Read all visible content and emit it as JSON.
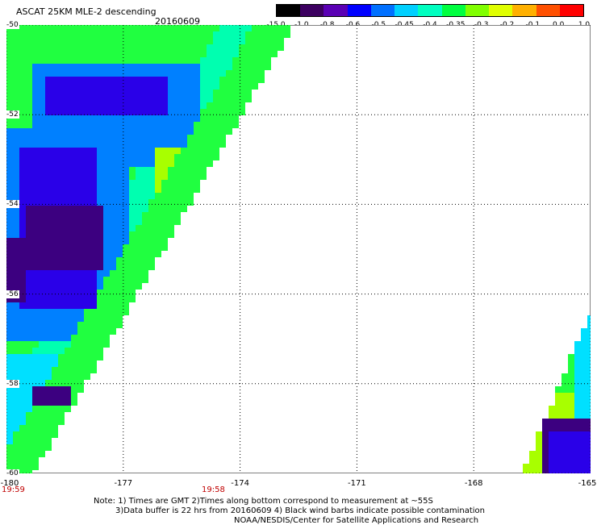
{
  "header": {
    "title": "ASCAT 25KM MLE-2 descending",
    "date": "20160609"
  },
  "colorbar": {
    "labels": [
      "-15.0",
      "-1.0",
      "-0.8",
      "-0.6",
      "-0.5",
      "-0.45",
      "-0.4",
      "-0.35",
      "-0.3",
      "-0.2",
      "-0.1",
      "0.0",
      "1.0"
    ],
    "colors": [
      "#000000",
      "#3c0060",
      "#5a00b4",
      "#0000ff",
      "#0070ff",
      "#00d0ff",
      "#00ffc0",
      "#00ff40",
      "#80ff00",
      "#e0ff00",
      "#ffb000",
      "#ff5000",
      "#ff0000"
    ]
  },
  "map": {
    "x_labels": [
      "-180",
      "-177",
      "-174",
      "-171",
      "-168",
      "-165"
    ],
    "y_labels": [
      "-50",
      "-52",
      "-54",
      "-56",
      "-58",
      "-60"
    ],
    "times": [
      "19:59",
      "19:58"
    ],
    "field_colors": {
      "deep": "#3c0080",
      "blue": "#2a00e8",
      "lightblue": "#0080ff",
      "cyan": "#00e0ff",
      "aqua": "#00ffb0",
      "green": "#20ff40",
      "lime": "#a8ff00"
    }
  },
  "notes": {
    "line1": "Note: 1) Times are GMT 2)Times along bottom correspond to measurement at ~55S",
    "line2": "3)Data buffer is 22 hrs from 20160609 4) Black wind barbs indicate possible contamination",
    "line3": "NOAA/NESDIS/Center for Satellite Applications and Research"
  }
}
